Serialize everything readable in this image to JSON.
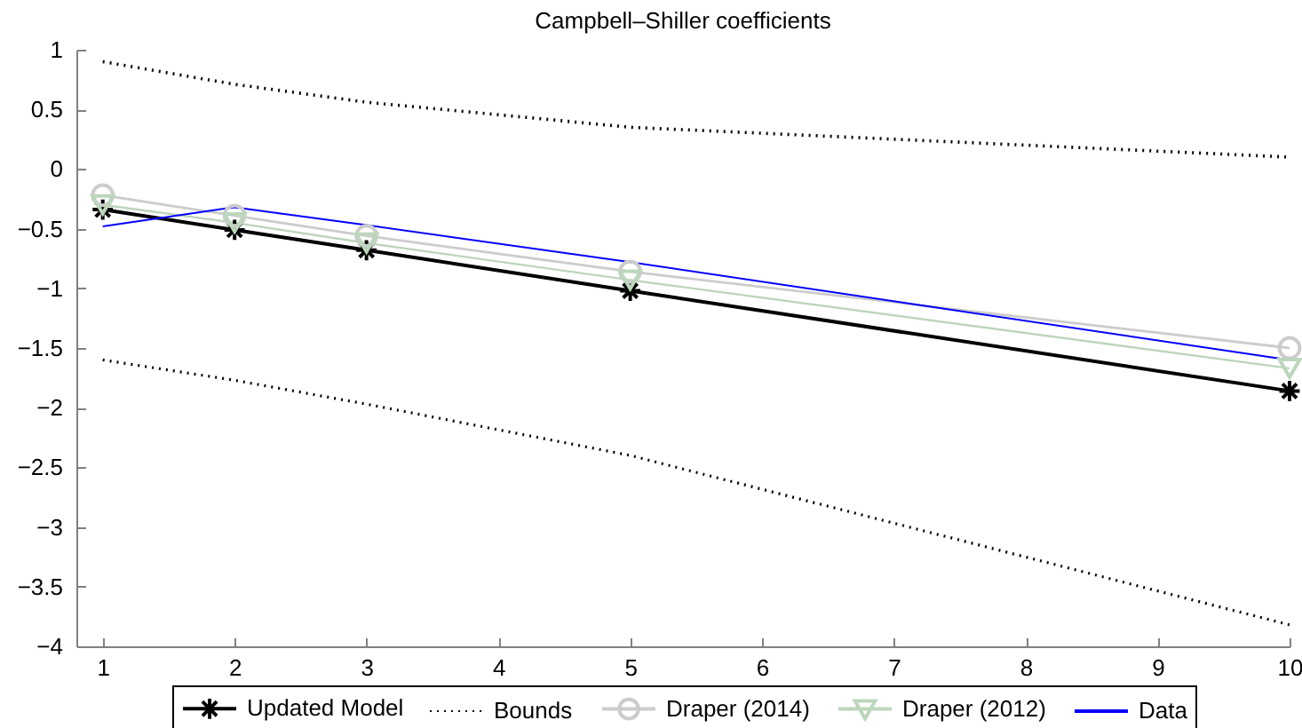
{
  "chart_data": {
    "type": "line",
    "title": "Campbell–Shiller coefficients",
    "x": [
      1,
      2,
      3,
      5,
      10
    ],
    "series": [
      {
        "name": "Updated Model",
        "color": "#000000",
        "marker": "cross",
        "values": [
          -0.34,
          -0.51,
          -0.68,
          -1.02,
          -1.86
        ]
      },
      {
        "name": "Bounds",
        "color": "#000000",
        "marker": "none",
        "line_style": "dotted",
        "values": [
          0.9,
          0.71,
          0.56,
          0.35,
          0.1
        ]
      },
      {
        "color": "#000000",
        "marker": "none",
        "line_style": "dotted",
        "values": [
          -1.6,
          -1.77,
          -1.97,
          -2.4,
          -3.82
        ]
      },
      {
        "name": "Draper (2014)",
        "color": "#cccccc",
        "marker": "circle",
        "values": [
          -0.22,
          -0.39,
          -0.56,
          -0.86,
          -1.5
        ]
      },
      {
        "name": "Draper (2012)",
        "color": "#bcd6bb",
        "marker": "triangle",
        "values": [
          -0.3,
          -0.45,
          -0.62,
          -0.93,
          -1.67
        ]
      },
      {
        "name": "Data",
        "color": "#0000ff",
        "marker": "none",
        "values": [
          -0.48,
          -0.32,
          -0.47,
          -0.78,
          -1.6
        ]
      }
    ],
    "xlim": [
      0.8,
      10
    ],
    "xticks": [
      1,
      2,
      3,
      4,
      5,
      6,
      7,
      8,
      9,
      10
    ],
    "ylim": [
      -4,
      1
    ],
    "yticks": [
      {
        "value": -4,
        "label": "−4"
      },
      {
        "value": -3.5,
        "label": "−3.5"
      },
      {
        "value": -3,
        "label": "−3"
      },
      {
        "value": -2.5,
        "label": "−2.5"
      },
      {
        "value": -2,
        "label": "−2"
      },
      {
        "value": -1.5,
        "label": "−1.5"
      },
      {
        "value": -1,
        "label": "−1"
      },
      {
        "value": -0.5,
        "label": "−0.5"
      },
      0,
      0.5,
      1
    ],
    "grid": false,
    "legend": "bottom",
    "line_style": "solid"
  }
}
